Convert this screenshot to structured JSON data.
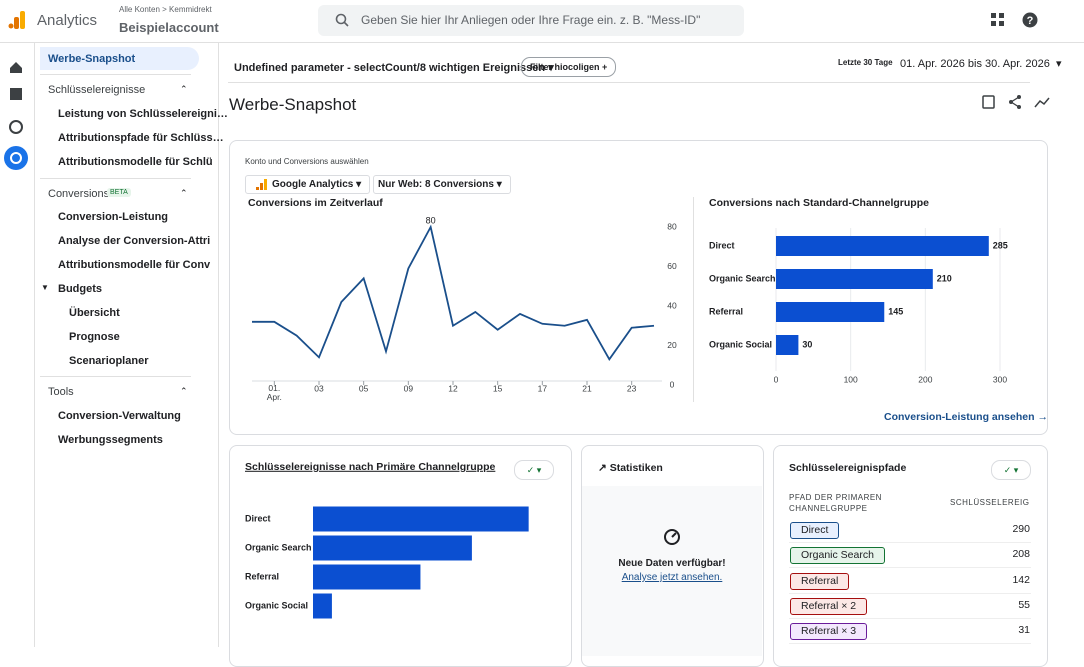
{
  "header": {
    "app_name": "Analytics",
    "breadcrumb": [
      "Alle Konten",
      "Kemmidrekt"
    ],
    "account": "Beispielaccount",
    "search_placeholder": "Geben Sie hier Ihr Anliegen oder Ihre Frage ein. z. B. \"Mess-ID\""
  },
  "sidebar": {
    "active": "Werbe-Snapshot",
    "sections": [
      {
        "title": "Schlüsselereignisse",
        "items": [
          "Leistung von Schlüsselereigni…",
          "Attributionspfade für Schlüss…",
          "Attributionsmodelle für Schlü"
        ]
      },
      {
        "title": "Conversions",
        "badge": "BETA",
        "items": [
          "Conversion-Leistung",
          "Analyse der Conversion-Attri",
          "Attributionsmodelle für Conv"
        ],
        "group": "Budgets",
        "subitems": [
          "Übersicht",
          "Prognose",
          "Scenarioplaner"
        ]
      },
      {
        "title": "Tools",
        "items": [
          "Conversion-Verwaltung",
          "Werbungssegments"
        ]
      }
    ]
  },
  "toolbar": {
    "parameter": "Undefined parameter - selectCount/8 wichtigen Ereignissen",
    "filter": "Filter hiocoligen",
    "date_label": "Letzte 30 Tage",
    "date_range": "01. Apr. 2026 bis 30. Apr. 2026"
  },
  "page_title": "Werbe-Snapshot",
  "overview": {
    "label": "Konto und Conversions auswählen",
    "account_select": "Google Analytics",
    "conversion_select": "Nur Web: 8 Conversions",
    "link": "Conversion-Leistung ansehen"
  },
  "chart_data": [
    {
      "type": "line",
      "title": "Conversions im Zeitverlauf",
      "categories": [
        null,
        "01. Apr.",
        null,
        "03",
        null,
        "05",
        null,
        "09",
        null,
        "12",
        null,
        "15",
        null,
        "17",
        null,
        "21",
        null,
        "23",
        null
      ],
      "values": [
        32,
        32,
        25,
        14,
        42,
        54,
        17,
        59,
        80,
        30,
        37,
        28,
        36,
        31,
        30,
        33,
        13,
        29,
        30
      ],
      "value_labels": [
        null,
        null,
        null,
        null,
        null,
        null,
        null,
        null,
        "80",
        null,
        null,
        null,
        null,
        null,
        null,
        null,
        null,
        null,
        null
      ],
      "color": "#1a4f8b",
      "ylim": [
        0,
        80
      ],
      "yticks": [
        0,
        20,
        40,
        60,
        80
      ]
    },
    {
      "type": "hbar",
      "title": "Conversions nach Standard-Channelgruppe",
      "categories": [
        "Direct",
        "Organic Search",
        "Referral",
        "Organic Social"
      ],
      "values": [
        285,
        210,
        145,
        30
      ],
      "color": "#0b4fd1",
      "xlim": [
        0,
        300
      ],
      "xticks": [
        0,
        100,
        200,
        300
      ],
      "grid": true
    },
    {
      "type": "hbar",
      "title": "Schlüsselereignisse nach Primäre Channelgruppe",
      "categories": [
        "Direct",
        "Organic Search",
        "Referral",
        "Organic Social"
      ],
      "values": [
        285,
        210,
        142,
        25
      ],
      "color": "#0b4fd1",
      "xlim": [
        0,
        300
      ]
    }
  ],
  "stats": {
    "title": "Statistiken",
    "message": "Neue Daten verfügbar!",
    "link": "Analyse jetzt ansehen."
  },
  "paths": {
    "title": "Schlüsselereignispfade",
    "columns": [
      "PFAD DER PRIMAREN CHANNELGRUPPE",
      "SCHLÜSSELEREIGI"
    ],
    "rows": [
      [
        "Direct",
        290
      ],
      [
        "Organic Search",
        208
      ],
      [
        "Referral",
        142
      ],
      [
        "Referral × 2",
        55
      ],
      [
        "Referral × 3",
        31
      ]
    ]
  }
}
